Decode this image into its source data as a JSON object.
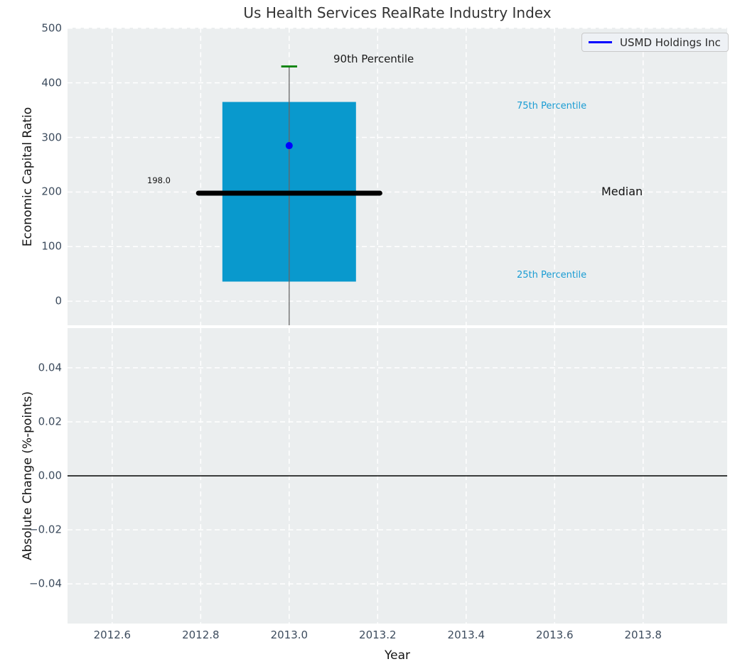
{
  "title": "Us Health Services RealRate Industry Index",
  "legend": {
    "label": "USMD Holdings Inc",
    "line_color": "#0000ff"
  },
  "annotations": {
    "p90": "90th Percentile",
    "p75": "75th Percentile",
    "median": "Median",
    "p25": "25th Percentile",
    "median_value_label": "198.0"
  },
  "chart_data": {
    "type": "boxplot",
    "title": "Us Health Services RealRate Industry Index",
    "xlabel": "Year",
    "x": 2013,
    "xlim": [
      2012.499,
      2013.99
    ],
    "xticks": {
      "values": [
        2012.6,
        2012.8,
        2013.0,
        2013.2,
        2013.4,
        2013.6,
        2013.8
      ],
      "labels": [
        "2012.6",
        "2012.8",
        "2013.0",
        "2013.2",
        "2013.4",
        "2013.6",
        "2013.8"
      ]
    },
    "top": {
      "ylabel": "Economic Capital Ratio",
      "ylim": [
        -44,
        501
      ],
      "yticks": {
        "values": [
          0,
          100,
          200,
          300,
          400,
          500
        ],
        "labels": [
          "0",
          "100",
          "200",
          "300",
          "400",
          "500"
        ]
      },
      "box": {
        "q1": 36,
        "median": 198.0,
        "q3": 365,
        "p90": 430,
        "whisker_low_clipped": true,
        "company_value": 285,
        "box_halfwidth": 0.151,
        "median_halfwidth": 0.205,
        "cap_halfwidth": 0.018
      },
      "colors": {
        "box": "#0999cd",
        "median": "#000000",
        "whisker": "#666666",
        "cap": "#0a840a",
        "dot": "#0000ff"
      }
    },
    "bottom": {
      "ylabel": "Absolute Change (%-points)",
      "ylim": [
        -0.0547,
        0.0547
      ],
      "yticks": {
        "values": [
          0.04,
          0.02,
          0,
          -0.02,
          -0.04
        ],
        "labels": [
          "0.04",
          "0.02",
          "0.00",
          "−0.02",
          "−0.04"
        ]
      },
      "zero_line": 0,
      "series": []
    },
    "grid": {
      "color": "#ffffff",
      "dash": "7 4.5",
      "width": 1.5,
      "on": true
    },
    "axes_bg": "#ebeeef",
    "legend_position": "upper right"
  }
}
